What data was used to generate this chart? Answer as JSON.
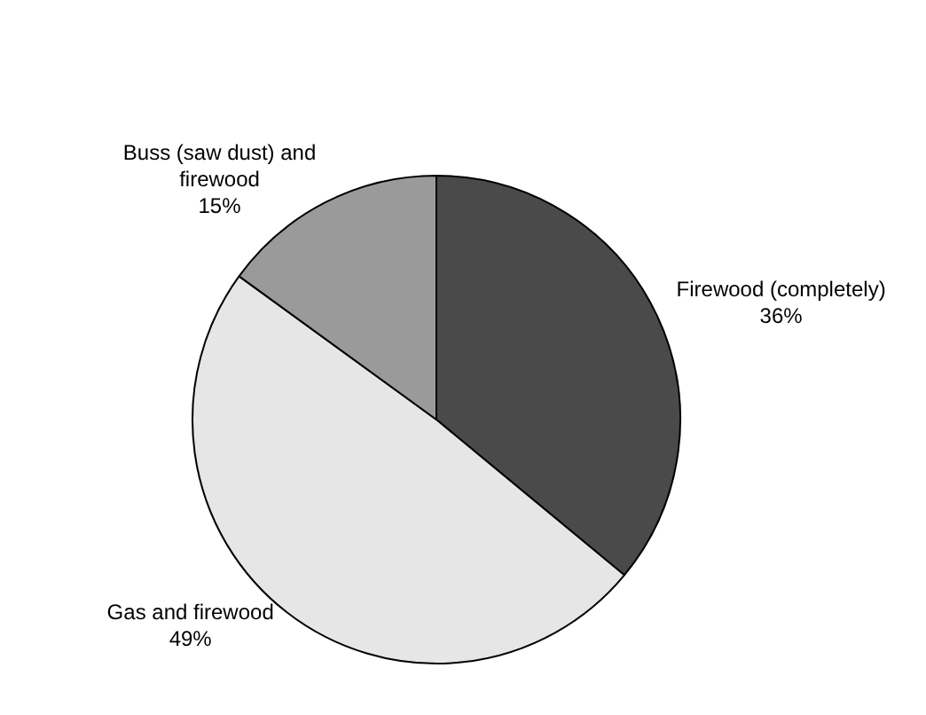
{
  "chart_data": {
    "type": "pie",
    "categories": [
      "Firewood (completely)",
      "Gas and firewood",
      "Buss (saw dust) and firewood"
    ],
    "values": [
      36,
      49,
      15
    ],
    "value_labels": [
      "36%",
      "49%",
      "15%"
    ],
    "colors": [
      "#4a4a4a",
      "#e6e6e6",
      "#9a9a9a"
    ],
    "legend": false
  }
}
